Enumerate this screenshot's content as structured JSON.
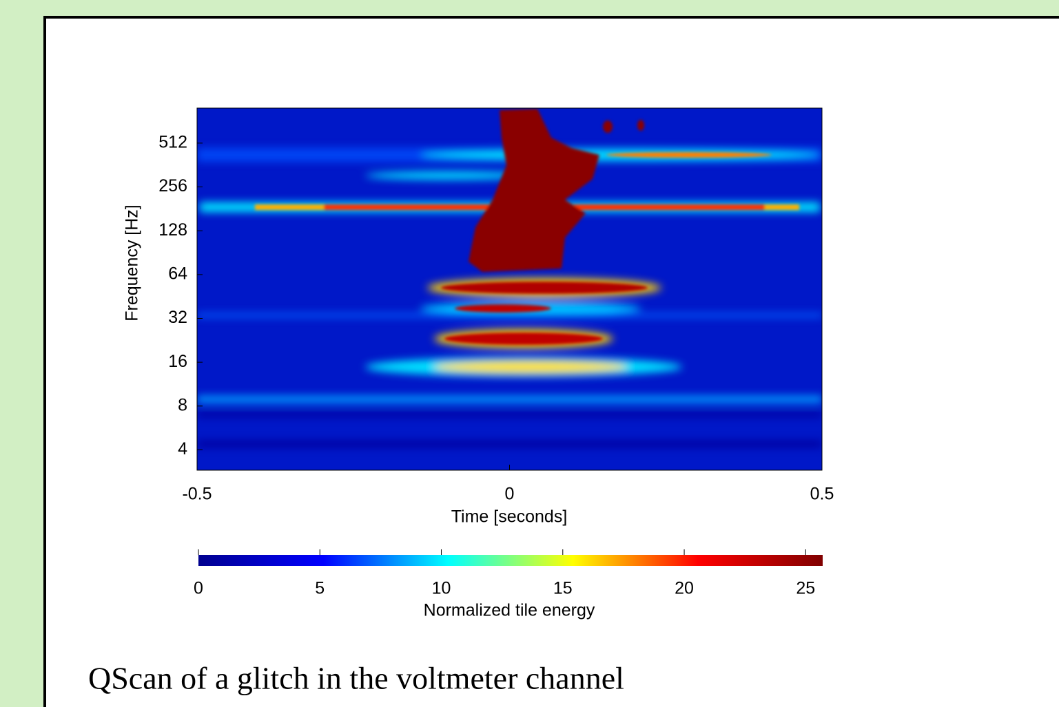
{
  "chart_data": {
    "type": "spectrogram",
    "xlabel": "Time [seconds]",
    "ylabel": "Frequency [Hz]",
    "xlim": [
      -0.5,
      0.5
    ],
    "xticks": [
      -0.5,
      0,
      0.5
    ],
    "ylim": [
      2.9,
      891
    ],
    "yticks": [
      4,
      8,
      16,
      32,
      64,
      128,
      256,
      512
    ],
    "log_scale": true,
    "clim": [
      0,
      25.7
    ],
    "cticks": [
      0,
      5,
      10,
      15,
      20,
      25
    ],
    "clabel": "Normalized tile energy",
    "colormap": [
      "#00008f",
      "#0000ff",
      "#00ffff",
      "#ffff00",
      "#ff0000",
      "#800000"
    ],
    "caption": "QScan of a glitch in the voltmeter channel"
  }
}
